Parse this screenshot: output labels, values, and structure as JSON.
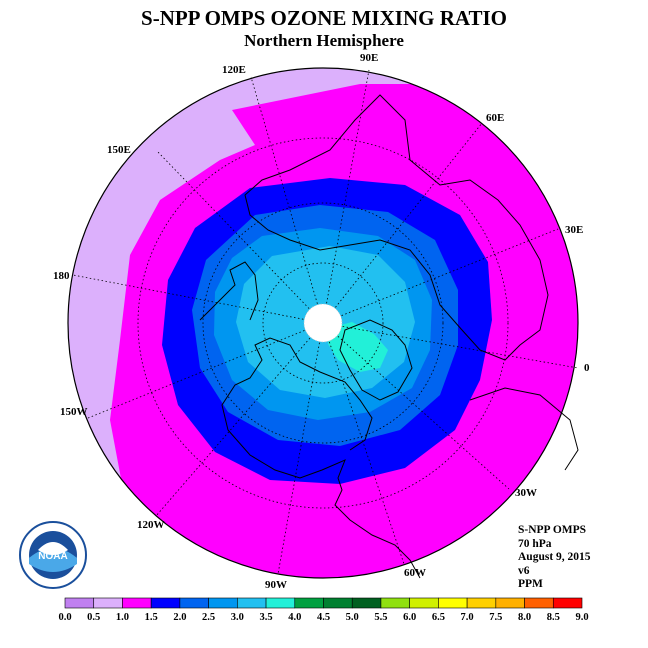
{
  "header": {
    "title": "S-NPP OMPS OZONE MIXING RATIO",
    "subtitle": "Northern Hemisphere"
  },
  "map": {
    "projection": "north polar stereographic",
    "longitude_labels": [
      "120E",
      "90E",
      "60E",
      "150E",
      "30E",
      "180",
      "0",
      "150W",
      "30W",
      "120W",
      "90W",
      "60W"
    ],
    "pole_gap": "no data (white)"
  },
  "info": {
    "instrument": "S-NPP OMPS",
    "level": "70 hPa",
    "date": "August 9, 2015",
    "version": "v6",
    "units": "PPM"
  },
  "colorbar": {
    "ticks": [
      "0.0",
      "0.5",
      "1.0",
      "1.5",
      "2.0",
      "2.5",
      "3.0",
      "3.5",
      "4.0",
      "4.5",
      "5.0",
      "5.5",
      "6.0",
      "6.5",
      "7.0",
      "7.5",
      "8.0",
      "8.5",
      "9.0"
    ],
    "colors": [
      "#c080f0",
      "#dcb0fc",
      "#ff00ff",
      "#0000ff",
      "#0064f0",
      "#0096f0",
      "#22c0f0",
      "#22f0d8",
      "#00a040",
      "#008030",
      "#006020",
      "#90e010",
      "#d0f000",
      "#ffff00",
      "#ffd000",
      "#ffb000",
      "#ff6000",
      "#ff0000",
      "#8b5a3c"
    ]
  },
  "logo": {
    "text": "NOAA",
    "icon": "noaa-logo-icon"
  }
}
